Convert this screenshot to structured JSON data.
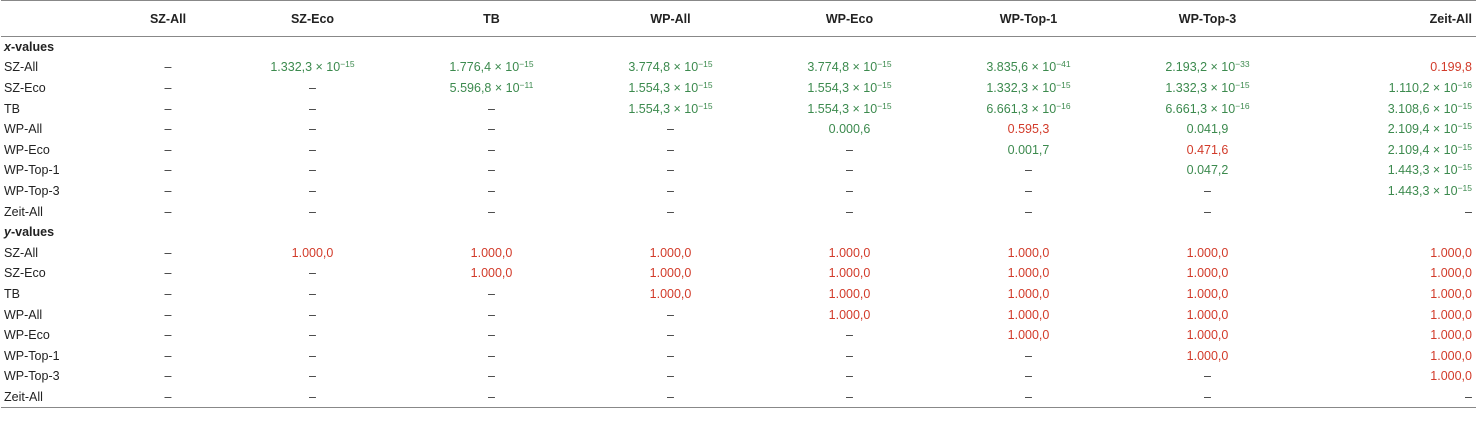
{
  "columns": [
    "SZ-All",
    "SZ-Eco",
    "TB",
    "WP-All",
    "WP-Eco",
    "WP-Top-1",
    "WP-Top-3",
    "Zeit-All"
  ],
  "sections": [
    {
      "label_var": "x",
      "label_rest": "-values",
      "rows": [
        {
          "label": "SZ-All",
          "cells": [
            {
              "t": "–",
              "c": "na"
            },
            {
              "t": "1.332,3 × 10",
              "e": "−15",
              "c": "sig"
            },
            {
              "t": "1.776,4 × 10",
              "e": "−15",
              "c": "sig"
            },
            {
              "t": "3.774,8 × 10",
              "e": "−15",
              "c": "sig"
            },
            {
              "t": "3.774,8 × 10",
              "e": "−15",
              "c": "sig"
            },
            {
              "t": "3.835,6 × 10",
              "e": "−41",
              "c": "sig"
            },
            {
              "t": "2.193,2 × 10",
              "e": "−33",
              "c": "sig"
            },
            {
              "t": "0.199,8",
              "c": "nonsig"
            }
          ]
        },
        {
          "label": "SZ-Eco",
          "cells": [
            {
              "t": "–",
              "c": "na"
            },
            {
              "t": "–",
              "c": "na"
            },
            {
              "t": "5.596,8 × 10",
              "e": "−11",
              "c": "sig"
            },
            {
              "t": "1.554,3 × 10",
              "e": "−15",
              "c": "sig"
            },
            {
              "t": "1.554,3 × 10",
              "e": "−15",
              "c": "sig"
            },
            {
              "t": "1.332,3 × 10",
              "e": "−15",
              "c": "sig"
            },
            {
              "t": "1.332,3 × 10",
              "e": "−15",
              "c": "sig"
            },
            {
              "t": "1.110,2 × 10",
              "e": "−16",
              "c": "sig"
            }
          ]
        },
        {
          "label": "TB",
          "cells": [
            {
              "t": "–",
              "c": "na"
            },
            {
              "t": "–",
              "c": "na"
            },
            {
              "t": "–",
              "c": "na"
            },
            {
              "t": "1.554,3 × 10",
              "e": "−15",
              "c": "sig"
            },
            {
              "t": "1.554,3 × 10",
              "e": "−15",
              "c": "sig"
            },
            {
              "t": "6.661,3 × 10",
              "e": "−16",
              "c": "sig"
            },
            {
              "t": "6.661,3 × 10",
              "e": "−16",
              "c": "sig"
            },
            {
              "t": "3.108,6 × 10",
              "e": "−15",
              "c": "sig"
            }
          ]
        },
        {
          "label": "WP-All",
          "cells": [
            {
              "t": "–",
              "c": "na"
            },
            {
              "t": "–",
              "c": "na"
            },
            {
              "t": "–",
              "c": "na"
            },
            {
              "t": "–",
              "c": "na"
            },
            {
              "t": "0.000,6",
              "c": "sig"
            },
            {
              "t": "0.595,3",
              "c": "nonsig"
            },
            {
              "t": "0.041,9",
              "c": "sig"
            },
            {
              "t": "2.109,4 × 10",
              "e": "−15",
              "c": "sig"
            }
          ]
        },
        {
          "label": "WP-Eco",
          "cells": [
            {
              "t": "–",
              "c": "na"
            },
            {
              "t": "–",
              "c": "na"
            },
            {
              "t": "–",
              "c": "na"
            },
            {
              "t": "–",
              "c": "na"
            },
            {
              "t": "–",
              "c": "na"
            },
            {
              "t": "0.001,7",
              "c": "sig"
            },
            {
              "t": "0.471,6",
              "c": "nonsig"
            },
            {
              "t": "2.109,4 × 10",
              "e": "−15",
              "c": "sig"
            }
          ]
        },
        {
          "label": "WP-Top-1",
          "cells": [
            {
              "t": "–",
              "c": "na"
            },
            {
              "t": "–",
              "c": "na"
            },
            {
              "t": "–",
              "c": "na"
            },
            {
              "t": "–",
              "c": "na"
            },
            {
              "t": "–",
              "c": "na"
            },
            {
              "t": "–",
              "c": "na"
            },
            {
              "t": "0.047,2",
              "c": "sig"
            },
            {
              "t": "1.443,3 × 10",
              "e": "−15",
              "c": "sig"
            }
          ]
        },
        {
          "label": "WP-Top-3",
          "cells": [
            {
              "t": "–",
              "c": "na"
            },
            {
              "t": "–",
              "c": "na"
            },
            {
              "t": "–",
              "c": "na"
            },
            {
              "t": "–",
              "c": "na"
            },
            {
              "t": "–",
              "c": "na"
            },
            {
              "t": "–",
              "c": "na"
            },
            {
              "t": "–",
              "c": "na"
            },
            {
              "t": "1.443,3 × 10",
              "e": "−15",
              "c": "sig"
            }
          ]
        },
        {
          "label": "Zeit-All",
          "cells": [
            {
              "t": "–",
              "c": "na"
            },
            {
              "t": "–",
              "c": "na"
            },
            {
              "t": "–",
              "c": "na"
            },
            {
              "t": "–",
              "c": "na"
            },
            {
              "t": "–",
              "c": "na"
            },
            {
              "t": "–",
              "c": "na"
            },
            {
              "t": "–",
              "c": "na"
            },
            {
              "t": "–",
              "c": "na"
            }
          ]
        }
      ]
    },
    {
      "label_var": "y",
      "label_rest": "-values",
      "rows": [
        {
          "label": "SZ-All",
          "cells": [
            {
              "t": "–",
              "c": "na"
            },
            {
              "t": "1.000,0",
              "c": "nonsig"
            },
            {
              "t": "1.000,0",
              "c": "nonsig"
            },
            {
              "t": "1.000,0",
              "c": "nonsig"
            },
            {
              "t": "1.000,0",
              "c": "nonsig"
            },
            {
              "t": "1.000,0",
              "c": "nonsig"
            },
            {
              "t": "1.000,0",
              "c": "nonsig"
            },
            {
              "t": "1.000,0",
              "c": "nonsig"
            }
          ]
        },
        {
          "label": "SZ-Eco",
          "cells": [
            {
              "t": "–",
              "c": "na"
            },
            {
              "t": "–",
              "c": "na"
            },
            {
              "t": "1.000,0",
              "c": "nonsig"
            },
            {
              "t": "1.000,0",
              "c": "nonsig"
            },
            {
              "t": "1.000,0",
              "c": "nonsig"
            },
            {
              "t": "1.000,0",
              "c": "nonsig"
            },
            {
              "t": "1.000,0",
              "c": "nonsig"
            },
            {
              "t": "1.000,0",
              "c": "nonsig"
            }
          ]
        },
        {
          "label": "TB",
          "cells": [
            {
              "t": "–",
              "c": "na"
            },
            {
              "t": "–",
              "c": "na"
            },
            {
              "t": "–",
              "c": "na"
            },
            {
              "t": "1.000,0",
              "c": "nonsig"
            },
            {
              "t": "1.000,0",
              "c": "nonsig"
            },
            {
              "t": "1.000,0",
              "c": "nonsig"
            },
            {
              "t": "1.000,0",
              "c": "nonsig"
            },
            {
              "t": "1.000,0",
              "c": "nonsig"
            }
          ]
        },
        {
          "label": "WP-All",
          "cells": [
            {
              "t": "–",
              "c": "na"
            },
            {
              "t": "–",
              "c": "na"
            },
            {
              "t": "–",
              "c": "na"
            },
            {
              "t": "–",
              "c": "na"
            },
            {
              "t": "1.000,0",
              "c": "nonsig"
            },
            {
              "t": "1.000,0",
              "c": "nonsig"
            },
            {
              "t": "1.000,0",
              "c": "nonsig"
            },
            {
              "t": "1.000,0",
              "c": "nonsig"
            }
          ]
        },
        {
          "label": "WP-Eco",
          "cells": [
            {
              "t": "–",
              "c": "na"
            },
            {
              "t": "–",
              "c": "na"
            },
            {
              "t": "–",
              "c": "na"
            },
            {
              "t": "–",
              "c": "na"
            },
            {
              "t": "–",
              "c": "na"
            },
            {
              "t": "1.000,0",
              "c": "nonsig"
            },
            {
              "t": "1.000,0",
              "c": "nonsig"
            },
            {
              "t": "1.000,0",
              "c": "nonsig"
            }
          ]
        },
        {
          "label": "WP-Top-1",
          "cells": [
            {
              "t": "–",
              "c": "na"
            },
            {
              "t": "–",
              "c": "na"
            },
            {
              "t": "–",
              "c": "na"
            },
            {
              "t": "–",
              "c": "na"
            },
            {
              "t": "–",
              "c": "na"
            },
            {
              "t": "–",
              "c": "na"
            },
            {
              "t": "1.000,0",
              "c": "nonsig"
            },
            {
              "t": "1.000,0",
              "c": "nonsig"
            }
          ]
        },
        {
          "label": "WP-Top-3",
          "cells": [
            {
              "t": "–",
              "c": "na"
            },
            {
              "t": "–",
              "c": "na"
            },
            {
              "t": "–",
              "c": "na"
            },
            {
              "t": "–",
              "c": "na"
            },
            {
              "t": "–",
              "c": "na"
            },
            {
              "t": "–",
              "c": "na"
            },
            {
              "t": "–",
              "c": "na"
            },
            {
              "t": "1.000,0",
              "c": "nonsig"
            }
          ]
        },
        {
          "label": "Zeit-All",
          "cells": [
            {
              "t": "–",
              "c": "na"
            },
            {
              "t": "–",
              "c": "na"
            },
            {
              "t": "–",
              "c": "na"
            },
            {
              "t": "–",
              "c": "na"
            },
            {
              "t": "–",
              "c": "na"
            },
            {
              "t": "–",
              "c": "na"
            },
            {
              "t": "–",
              "c": "na"
            },
            {
              "t": "–",
              "c": "na"
            }
          ]
        }
      ]
    }
  ],
  "colors": {
    "significant": "#3c8a4e",
    "not_significant": "#d23b2a",
    "rule": "#888888"
  }
}
